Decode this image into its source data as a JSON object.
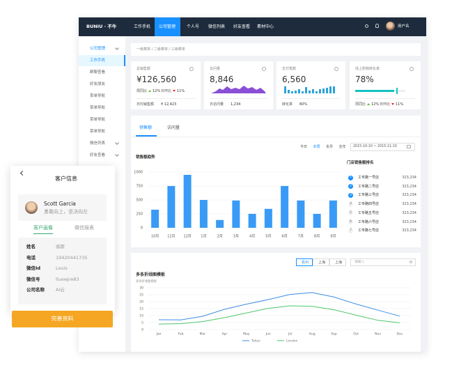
{
  "header": {
    "brand": "BUNIU · 不牛",
    "nav": [
      "工作手机",
      "公司管理",
      "个人号",
      "微信列表",
      "好友查看",
      "素材中心"
    ],
    "user": "用户名"
  },
  "sidebar": {
    "items": [
      "公司管理",
      "工作手机",
      "群聊查看",
      "好友朋友",
      "菜单导航",
      "菜单导航",
      "菜单导航",
      "菜单导航",
      "微信列表",
      "好友查看"
    ]
  },
  "breadcrumb": "一级菜单 / 二级菜单 / 三级菜单",
  "cards": [
    {
      "label": "总销售额",
      "value": "¥126,560",
      "stats": [
        {
          "label": "周同比",
          "value": "12%"
        },
        {
          "label": "日环比",
          "value": "11%"
        }
      ],
      "footer": [
        {
          "label": "日均销售额",
          "value": "¥ 12,423"
        }
      ]
    },
    {
      "label": "访问量",
      "value": "8,846",
      "footer": [
        {
          "label": "日访问量",
          "value": "1,234"
        }
      ]
    },
    {
      "label": "支付笔数",
      "value": "6,560",
      "footer": [
        {
          "label": "转化率",
          "value": "60%"
        }
      ]
    },
    {
      "label": "线上购物转化率",
      "value": {
        "value": 78,
        "label": "78%"
      },
      "footer": [
        {
          "label": "周同比",
          "value": "12%"
        },
        {
          "label": "日环比",
          "value": "11%"
        }
      ]
    }
  ],
  "tabs": [
    "销售额",
    "访问量"
  ],
  "ranges": [
    "今日",
    "本周",
    "本月",
    "全年"
  ],
  "date_range": "2015-10-10 ~ 2015-11-10",
  "sales_chart": {
    "type": "bar",
    "title": "销售额趋势",
    "categories": [
      "10月",
      "11月",
      "12月",
      "1月",
      "2月",
      "3月",
      "4月",
      "5月",
      "6月",
      "7月",
      "8月",
      "9月"
    ],
    "values": [
      325,
      750,
      950,
      500,
      140,
      490,
      250,
      340,
      750,
      490,
      250,
      490
    ],
    "color": "#3a9bf7",
    "ylim": [
      0,
      1000
    ],
    "yticks": [
      0,
      250,
      500,
      750,
      1000
    ]
  },
  "ranking": {
    "title": "门店销售额排名",
    "items": [
      {
        "rank": 1,
        "name": "工专路一号店",
        "value": "323,234"
      },
      {
        "rank": 2,
        "name": "工专路二号店",
        "value": "323,234"
      },
      {
        "rank": 3,
        "name": "工专路三号店",
        "value": "323,234"
      },
      {
        "rank": 4,
        "name": "工专路四号店",
        "value": "323,234"
      },
      {
        "rank": 5,
        "name": "工专路五号店",
        "value": "323,234"
      },
      {
        "rank": 6,
        "name": "工专路六号店",
        "value": "323,234"
      },
      {
        "rank": 7,
        "name": "工专路七号店",
        "value": "323,234"
      }
    ]
  },
  "trend_panel": {
    "cities": [
      "杭州",
      "上海",
      "上海"
    ],
    "search": "请输入"
  },
  "line_chart": {
    "type": "line",
    "title": "多条折线图模板",
    "subtitle": "多条折线图模板",
    "x": [
      "Jan",
      "Feb",
      "Mar",
      "Apr",
      "May",
      "Jun",
      "Jul",
      "Aug",
      "Sep",
      "Oct",
      "Nov",
      "Dec"
    ],
    "ylim": [
      0,
      30
    ],
    "yticks": [
      0,
      5,
      10,
      15,
      20,
      25,
      30
    ],
    "series": [
      {
        "name": "Tokyo",
        "color": "#3a8ee6",
        "values": [
          7.0,
          6.9,
          9.5,
          14.5,
          18.2,
          21.5,
          25.2,
          26.5,
          23.3,
          18.3,
          13.9,
          9.6
        ]
      },
      {
        "name": "London",
        "color": "#4cc66d",
        "values": [
          3.9,
          4.2,
          5.7,
          8.5,
          11.9,
          15.2,
          17.0,
          16.6,
          14.2,
          10.3,
          6.6,
          4.8
        ]
      }
    ]
  },
  "customer": {
    "title": "客户信息",
    "name": "Scott Garcia",
    "motto": "勇敢向上，坚决向左",
    "tabs": [
      "客户画像",
      "微信报表"
    ],
    "fields": [
      {
        "label": "姓名",
        "value": "高斯"
      },
      {
        "label": "电话",
        "value": "19420441735"
      },
      {
        "label": "微信Id",
        "value": "Louis"
      },
      {
        "label": "微信号",
        "value": "lluewjre83"
      },
      {
        "label": "公司名称",
        "value": "AI云"
      }
    ],
    "button": "完善资料"
  }
}
